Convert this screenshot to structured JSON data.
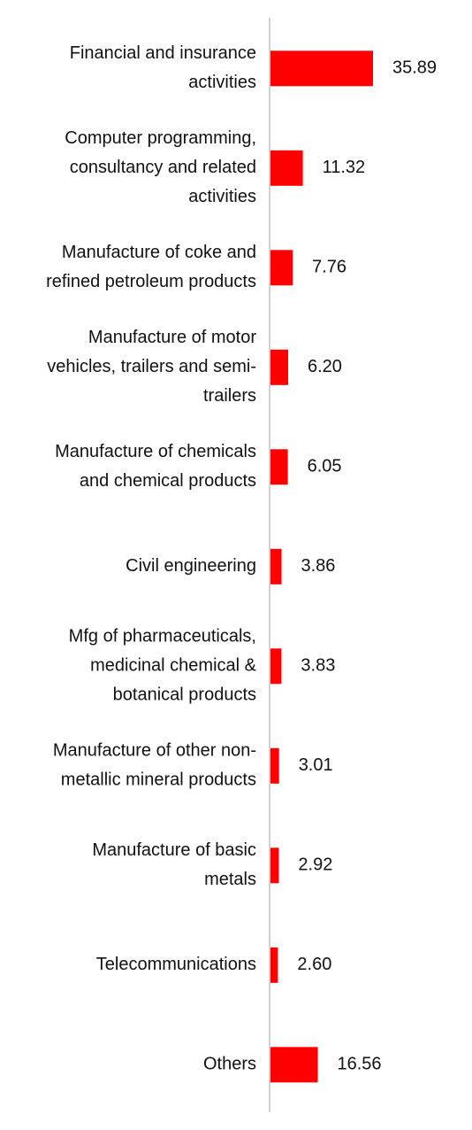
{
  "chart_data": {
    "type": "bar",
    "orientation": "horizontal",
    "categories": [
      "Financial and insurance activities",
      "Computer programming, consultancy and related activities",
      "Manufacture of coke and refined petroleum products",
      "Manufacture of motor vehicles, trailers and semi-trailers",
      "Manufacture of chemicals and chemical products",
      "Civil engineering",
      "Mfg of pharmaceuticals, medicinal chemical & botanical products",
      "Manufacture of other non-metallic mineral products",
      "Manufacture of basic metals",
      "Telecommunications",
      "Others"
    ],
    "category_lines": [
      [
        "Financial and insurance",
        "activities"
      ],
      [
        "Computer programming,",
        "consultancy and related",
        "activities"
      ],
      [
        "Manufacture of coke and",
        "refined petroleum products"
      ],
      [
        "Manufacture of motor",
        "vehicles, trailers and semi-",
        "trailers"
      ],
      [
        "Manufacture of chemicals",
        "and chemical products"
      ],
      [
        "Civil engineering"
      ],
      [
        "Mfg of pharmaceuticals,",
        "medicinal chemical &",
        "botanical products"
      ],
      [
        "Manufacture of other non-",
        "metallic mineral products"
      ],
      [
        "Manufacture of basic",
        "metals"
      ],
      [
        "Telecommunications"
      ],
      [
        "Others"
      ]
    ],
    "values": [
      35.89,
      11.32,
      7.76,
      6.2,
      6.05,
      3.86,
      3.83,
      3.01,
      2.92,
      2.6,
      16.56
    ],
    "value_labels": [
      "35.89",
      "11.32",
      "7.76",
      "6.20",
      "6.05",
      "3.86",
      "3.83",
      "3.01",
      "2.92",
      "2.60",
      "16.56"
    ],
    "title": "",
    "xlabel": "",
    "ylabel": "",
    "grid": false,
    "legend": "none",
    "bar_color": "#ff0000",
    "axis_color": "#d0d0d0",
    "text_color": "#111111"
  }
}
